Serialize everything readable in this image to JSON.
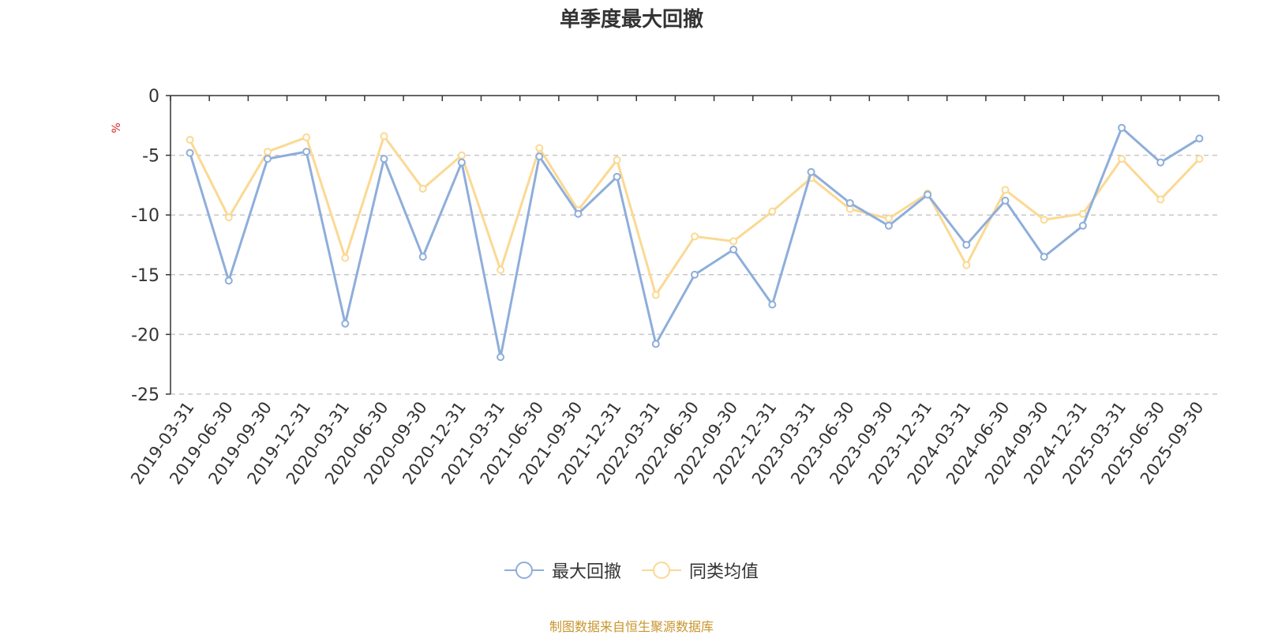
{
  "chart_data": {
    "type": "line",
    "title": "单季度最大回撤",
    "ylabel": "%",
    "ylim": [
      -25,
      0
    ],
    "yticks": [
      0,
      -5,
      -10,
      -15,
      -20,
      -25
    ],
    "grid": true,
    "legend_position": "bottom-center",
    "categories": [
      "2019-03-31",
      "2019-06-30",
      "2019-09-30",
      "2019-12-31",
      "2020-03-31",
      "2020-06-30",
      "2020-09-30",
      "2020-12-31",
      "2021-03-31",
      "2021-06-30",
      "2021-09-30",
      "2021-12-31",
      "2022-03-31",
      "2022-06-30",
      "2022-09-30",
      "2022-12-31",
      "2023-03-31",
      "2023-06-30",
      "2023-09-30",
      "2023-12-31",
      "2024-03-31",
      "2024-06-30",
      "2024-09-30",
      "2024-12-31",
      "2025-03-31",
      "2025-06-30",
      "2025-09-30"
    ],
    "series": [
      {
        "name": "最大回撤",
        "color": "#8eaedb",
        "values": [
          -4.8,
          -15.5,
          -5.3,
          -4.7,
          -19.1,
          -5.3,
          -13.5,
          -5.6,
          -21.9,
          -5.1,
          -9.9,
          -6.8,
          -20.8,
          -15.0,
          -12.9,
          -17.5,
          -6.4,
          -9.0,
          -10.9,
          -8.3,
          -12.5,
          -8.8,
          -13.5,
          -10.9,
          -2.7,
          -5.6,
          -3.6
        ]
      },
      {
        "name": "同类均值",
        "color": "#fbd993",
        "values": [
          -3.7,
          -10.2,
          -4.7,
          -3.5,
          -13.6,
          -3.4,
          -7.8,
          -5.0,
          -14.6,
          -4.4,
          -9.6,
          -5.4,
          -16.7,
          -11.8,
          -12.2,
          -9.7,
          -6.9,
          -9.5,
          -10.3,
          -8.2,
          -14.2,
          -7.9,
          -10.4,
          -9.9,
          -5.3,
          -8.7,
          -5.3
        ]
      }
    ]
  },
  "source_note": "制图数据来自恒生聚源数据库"
}
